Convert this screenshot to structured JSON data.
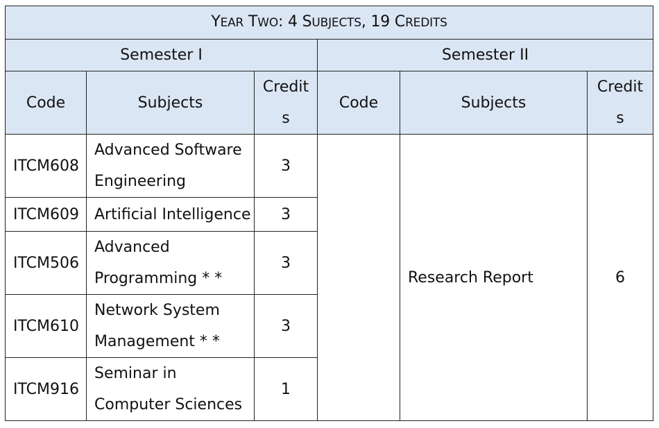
{
  "table": {
    "title": {
      "parts": [
        {
          "cap": "Y",
          "rest": "EAR"
        },
        {
          "cap": "T",
          "rest": "WO"
        },
        {
          "text": ": 4 "
        },
        {
          "cap": "S",
          "rest": "UBJECTS"
        },
        {
          "text": ", 19 "
        },
        {
          "cap": "C",
          "rest": "REDITS"
        }
      ]
    },
    "semester1": {
      "label": "Semester I",
      "headers": {
        "code": "Code",
        "subjects": "Subjects",
        "credits_line1": "Credit",
        "credits_line2": "s"
      },
      "rows": [
        {
          "code": "ITCM608",
          "subject_line1": "Advanced Software",
          "subject_line2": "Engineering",
          "credits": "3"
        },
        {
          "code": "ITCM609",
          "subject_line1": "Artificial Intelligence",
          "subject_line2": "",
          "credits": "3"
        },
        {
          "code": "ITCM506",
          "subject_line1": "Advanced",
          "subject_line2": "Programming * *",
          "credits": "3"
        },
        {
          "code": "ITCM610",
          "subject_line1": "Network System",
          "subject_line2": "Management * *",
          "credits": "3"
        },
        {
          "code": "ITCM916",
          "subject_line1": "Seminar in",
          "subject_line2": "Computer Sciences",
          "credits": "1"
        }
      ]
    },
    "semester2": {
      "label": "Semester II",
      "headers": {
        "code": "Code",
        "subjects": "Subjects",
        "credits_line1": "Credit",
        "credits_line2": "s"
      },
      "row": {
        "code": "",
        "subject": "Research Report",
        "credits": "6"
      }
    }
  }
}
